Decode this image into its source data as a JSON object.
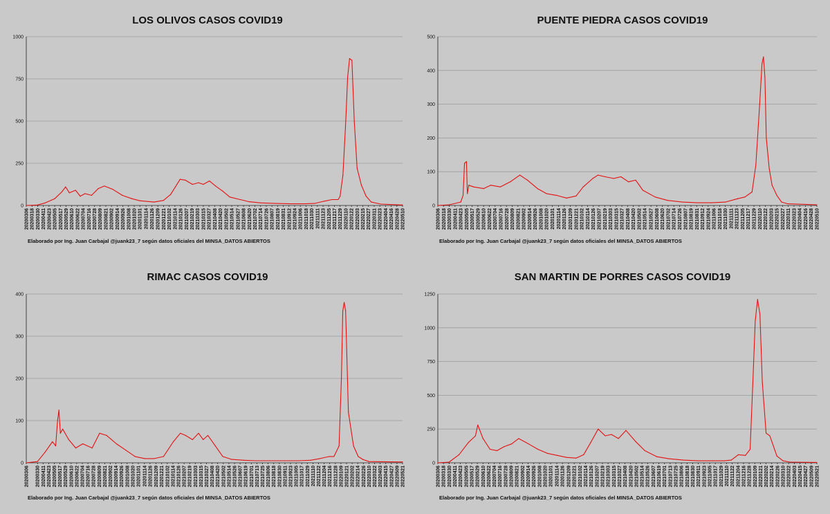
{
  "credit": "Elaborado por Ing. Juan Carbajal @juank23_7 según datos oficiales del MINSA_DATOS ABIERTOS",
  "chart_data": [
    {
      "type": "line",
      "title": "LOS OLIVOS CASOS COVID19",
      "ylim": [
        0,
        1000
      ],
      "yticks": [
        0,
        250,
        500,
        750,
        1000
      ],
      "xlabel": "",
      "ylabel": "",
      "grid": true,
      "color": "#e51010",
      "x_tick_labels": [
        "20200306",
        "20200318",
        "20200330",
        "20200411",
        "20200423",
        "20200505",
        "20200517",
        "20200529",
        "20200610",
        "20200622",
        "20200704",
        "20200716",
        "20200728",
        "20200809",
        "20200821",
        "20200902",
        "20200914",
        "20200926",
        "20201008",
        "20201020",
        "20201101",
        "20201114",
        "20201126",
        "20201209",
        "20201221",
        "20210102",
        "20210114",
        "20210126",
        "20210207",
        "20210219",
        "20210303",
        "20210315",
        "20210327",
        "20210408",
        "20210420",
        "20210502",
        "20210514",
        "20210527",
        "20210608",
        "20210620",
        "20210702",
        "20210714",
        "20210726",
        "20210807",
        "20210819",
        "20210831",
        "20210912",
        "20210924",
        "20211006",
        "20211018",
        "20211030",
        "20211111",
        "20211123",
        "20211205",
        "20211217",
        "20211229",
        "20220110",
        "20220122",
        "20220203",
        "20220215",
        "20220227",
        "20220311",
        "20220323",
        "20220404",
        "20220416",
        "20220428",
        "20220510"
      ],
      "series": [
        {
          "x": [
            "20200306",
            "20200330",
            "20200415",
            "20200505",
            "20200520",
            "20200528",
            "20200605",
            "20200618",
            "20200628",
            "20200708",
            "20200722",
            "20200805",
            "20200818",
            "20200905",
            "20200925",
            "20201015",
            "20201101",
            "20201201",
            "20201221",
            "20210105",
            "20210125",
            "20210205",
            "20210220",
            "20210305",
            "20210315",
            "20210328",
            "20210410",
            "20210425",
            "20210510",
            "20210601",
            "20210620",
            "20210715",
            "20210815",
            "20210915",
            "20211015",
            "20211105",
            "20211125",
            "20211212",
            "20211225",
            "20211229",
            "20220104",
            "20220110",
            "20220114",
            "20220118",
            "20220123",
            "20220128",
            "20220203",
            "20220212",
            "20220222",
            "20220305",
            "20220325",
            "20220510"
          ],
          "values": [
            0,
            3,
            15,
            40,
            80,
            110,
            75,
            90,
            55,
            70,
            60,
            100,
            115,
            95,
            60,
            40,
            28,
            20,
            30,
            65,
            155,
            150,
            125,
            135,
            125,
            145,
            115,
            85,
            50,
            35,
            22,
            15,
            12,
            10,
            10,
            12,
            25,
            35,
            35,
            55,
            180,
            500,
            760,
            870,
            860,
            500,
            220,
            120,
            55,
            20,
            8,
            3
          ]
        }
      ]
    },
    {
      "type": "line",
      "title": "PUENTE PIEDRA CASOS COVID19",
      "ylim": [
        0,
        500
      ],
      "yticks": [
        0,
        100,
        200,
        300,
        400,
        500
      ],
      "xlabel": "",
      "ylabel": "",
      "grid": true,
      "color": "#e51010",
      "x_tick_labels": [
        "20200306",
        "20200318",
        "20200330",
        "20200411",
        "20200423",
        "20200505",
        "20200517",
        "20200529",
        "20200610",
        "20200622",
        "20200704",
        "20200716",
        "20200728",
        "20200809",
        "20200821",
        "20200902",
        "20200914",
        "20200926",
        "20201008",
        "20201020",
        "20201101",
        "20201114",
        "20201126",
        "20201209",
        "20201221",
        "20210102",
        "20210114",
        "20210126",
        "20210207",
        "20210219",
        "20210303",
        "20210315",
        "20210327",
        "20210408",
        "20210420",
        "20210502",
        "20210514",
        "20210527",
        "20210608",
        "20210620",
        "20210702",
        "20210714",
        "20210726",
        "20210807",
        "20210819",
        "20210831",
        "20210912",
        "20210924",
        "20211006",
        "20211018",
        "20211030",
        "20211111",
        "20211123",
        "20211205",
        "20211217",
        "20211229",
        "20220110",
        "20220122",
        "20220203",
        "20220215",
        "20220227",
        "20220311",
        "20220323",
        "20220404",
        "20220416",
        "20220428",
        "20220510"
      ],
      "series": [
        {
          "x": [
            "20200306",
            "20200330",
            "20200423",
            "20200428",
            "20200501",
            "20200505",
            "20200507",
            "20200510",
            "20200520",
            "20200610",
            "20200625",
            "20200715",
            "20200805",
            "20200825",
            "20200910",
            "20201001",
            "20201020",
            "20201110",
            "20201201",
            "20201221",
            "20210105",
            "20210125",
            "20210205",
            "20210220",
            "20210310",
            "20210325",
            "20210410",
            "20210425",
            "20210510",
            "20210605",
            "20210701",
            "20210801",
            "20210901",
            "20211001",
            "20211030",
            "20211125",
            "20211210",
            "20211225",
            "20220102",
            "20220110",
            "20220115",
            "20220118",
            "20220121",
            "20220124",
            "20220130",
            "20220205",
            "20220215",
            "20220225",
            "20220310",
            "20220510"
          ],
          "values": [
            0,
            2,
            10,
            30,
            125,
            130,
            35,
            60,
            55,
            50,
            60,
            55,
            70,
            90,
            75,
            50,
            35,
            30,
            22,
            28,
            55,
            80,
            90,
            85,
            80,
            85,
            70,
            75,
            45,
            25,
            15,
            10,
            8,
            8,
            10,
            20,
            25,
            40,
            120,
            300,
            420,
            440,
            380,
            200,
            110,
            60,
            30,
            10,
            5,
            2
          ]
        }
      ]
    },
    {
      "type": "line",
      "title": "RIMAC CASOS COVID19",
      "ylim": [
        0,
        400
      ],
      "yticks": [
        0,
        100,
        200,
        300,
        400
      ],
      "xlabel": "",
      "ylabel": "",
      "grid": true,
      "color": "#e51010",
      "x_tick_labels": [
        "20200306",
        "20200330",
        "20200411",
        "20200423",
        "20200505",
        "20200517",
        "20200529",
        "20200610",
        "20200622",
        "20200704",
        "20200716",
        "20200728",
        "20200809",
        "20200821",
        "20200902",
        "20200914",
        "20200926",
        "20201008",
        "20201020",
        "20201101",
        "20201114",
        "20201126",
        "20201209",
        "20201221",
        "20210102",
        "20210114",
        "20210126",
        "20210207",
        "20210219",
        "20210303",
        "20210315",
        "20210327",
        "20210408",
        "20210420",
        "20210502",
        "20210514",
        "20210526",
        "20210607",
        "20210619",
        "20210701",
        "20210713",
        "20210725",
        "20210806",
        "20210818",
        "20210830",
        "20210911",
        "20210923",
        "20211005",
        "20211017",
        "20211029",
        "20211110",
        "20211122",
        "20211204",
        "20211216",
        "20211228",
        "20220109",
        "20220121",
        "20220202",
        "20220214",
        "20220226",
        "20220310",
        "20220322",
        "20220403",
        "20220415",
        "20220427",
        "20220509",
        "20220521"
      ],
      "series": [
        {
          "x": [
            "20200306",
            "20200330",
            "20200415",
            "20200501",
            "20200508",
            "20200512",
            "20200515",
            "20200518",
            "20200523",
            "20200605",
            "20200620",
            "20200705",
            "20200725",
            "20200810",
            "20200825",
            "20200915",
            "20201005",
            "20201025",
            "20201115",
            "20201205",
            "20201225",
            "20210115",
            "20210130",
            "20210210",
            "20210225",
            "20210310",
            "20210320",
            "20210330",
            "20210415",
            "20210501",
            "20210520",
            "20210615",
            "20210710",
            "20210810",
            "20210910",
            "20211010",
            "20211105",
            "20211125",
            "20211215",
            "20211225",
            "20220105",
            "20220110",
            "20220113",
            "20220116",
            "20220119",
            "20220125",
            "20220205",
            "20220215",
            "20220225",
            "20220310",
            "20220521"
          ],
          "values": [
            0,
            3,
            25,
            50,
            40,
            100,
            125,
            70,
            80,
            55,
            35,
            45,
            35,
            70,
            65,
            45,
            30,
            15,
            10,
            10,
            15,
            50,
            70,
            65,
            55,
            70,
            55,
            65,
            40,
            15,
            8,
            6,
            5,
            5,
            5,
            5,
            6,
            10,
            15,
            15,
            40,
            200,
            360,
            380,
            360,
            120,
            40,
            15,
            8,
            3,
            2
          ]
        }
      ]
    },
    {
      "type": "line",
      "title": "SAN MARTIN DE PORRES CASOS COVID19",
      "ylim": [
        0,
        1250
      ],
      "yticks": [
        0,
        250,
        500,
        750,
        1000,
        1250
      ],
      "xlabel": "",
      "ylabel": "",
      "grid": true,
      "color": "#e51010",
      "x_tick_labels": [
        "20200306",
        "20200318",
        "20200330",
        "20200411",
        "20200423",
        "20200505",
        "20200517",
        "20200529",
        "20200610",
        "20200622",
        "20200704",
        "20200716",
        "20200728",
        "20200809",
        "20200821",
        "20200902",
        "20200914",
        "20200926",
        "20201008",
        "20201020",
        "20201101",
        "20201114",
        "20201126",
        "20201209",
        "20201221",
        "20210102",
        "20210114",
        "20210126",
        "20210207",
        "20210219",
        "20210303",
        "20210315",
        "20210327",
        "20210408",
        "20210420",
        "20210502",
        "20210514",
        "20210526",
        "20210607",
        "20210619",
        "20210701",
        "20210713",
        "20210725",
        "20210806",
        "20210818",
        "20210830",
        "20210911",
        "20210923",
        "20211005",
        "20211017",
        "20211029",
        "20211110",
        "20211122",
        "20211204",
        "20211216",
        "20211228",
        "20220109",
        "20220121",
        "20220202",
        "20220214",
        "20220226",
        "20220310",
        "20220322",
        "20220403",
        "20220415",
        "20220427",
        "20220509",
        "20220521"
      ],
      "series": [
        {
          "x": [
            "20200306",
            "20200330",
            "20200420",
            "20200510",
            "20200525",
            "20200530",
            "20200610",
            "20200625",
            "20200710",
            "20200725",
            "20200810",
            "20200825",
            "20200915",
            "20201005",
            "20201025",
            "20201115",
            "20201205",
            "20201225",
            "20210110",
            "20210125",
            "20210210",
            "20210225",
            "20210310",
            "20210325",
            "20210410",
            "20210430",
            "20210520",
            "20210615",
            "20210710",
            "20210810",
            "20210910",
            "20211010",
            "20211105",
            "20211120",
            "20211205",
            "20211220",
            "20211230",
            "20220105",
            "20220110",
            "20220115",
            "20220120",
            "20220125",
            "20220202",
            "20220210",
            "20220225",
            "20220310",
            "20220325",
            "20220521"
          ],
          "values": [
            0,
            5,
            60,
            150,
            200,
            280,
            180,
            100,
            90,
            120,
            140,
            180,
            140,
            100,
            70,
            55,
            40,
            35,
            60,
            150,
            250,
            200,
            210,
            180,
            240,
            160,
            90,
            45,
            30,
            20,
            15,
            15,
            15,
            20,
            60,
            55,
            100,
            600,
            1050,
            1210,
            1100,
            600,
            220,
            200,
            50,
            15,
            5,
            3
          ]
        }
      ]
    }
  ]
}
